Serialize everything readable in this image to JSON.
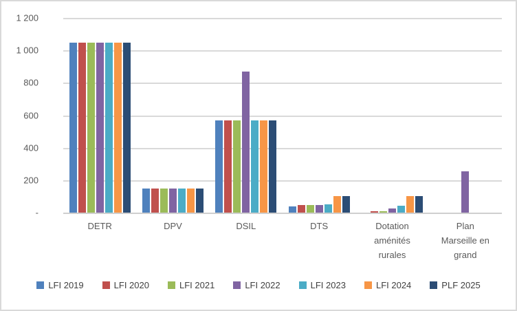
{
  "chart_data": {
    "type": "bar",
    "title": "",
    "categories": [
      "DETR",
      "DPV",
      "DSIL",
      "DTS",
      "Dotation aménités rurales",
      "Plan Marseille en grand"
    ],
    "series": [
      {
        "name": "LFI 2019",
        "color": "#4F81BD",
        "values": [
          1046,
          150,
          570,
          40,
          0,
          0
        ]
      },
      {
        "name": "LFI 2020",
        "color": "#C0504D",
        "values": [
          1046,
          150,
          570,
          46,
          8,
          0
        ]
      },
      {
        "name": "LFI 2021",
        "color": "#9BBB59",
        "values": [
          1046,
          150,
          570,
          46,
          10,
          0
        ]
      },
      {
        "name": "LFI 2022",
        "color": "#8064A2",
        "values": [
          1046,
          150,
          870,
          45,
          24,
          254
        ]
      },
      {
        "name": "LFI 2023",
        "color": "#4BACC6",
        "values": [
          1046,
          150,
          570,
          52,
          41,
          0
        ]
      },
      {
        "name": "LFI 2024",
        "color": "#F79646",
        "values": [
          1046,
          150,
          570,
          100,
          100,
          0
        ]
      },
      {
        "name": "PLF 2025",
        "color": "#2C4D75",
        "values": [
          1046,
          150,
          570,
          100,
          100,
          0
        ]
      }
    ],
    "ylim": [
      0,
      1200
    ],
    "yticks": [
      {
        "value": 0,
        "label": "-"
      },
      {
        "value": 200,
        "label": "200"
      },
      {
        "value": 400,
        "label": "400"
      },
      {
        "value": 600,
        "label": "600"
      },
      {
        "value": 800,
        "label": "800"
      },
      {
        "value": 1000,
        "label": "1 000"
      },
      {
        "value": 1200,
        "label": "1 200"
      }
    ],
    "grid": true,
    "legend_position": "bottom"
  },
  "colors": {
    "background": "#FFFFFF",
    "border": "#D9D9D9",
    "gridline": "#D9D9D9",
    "axis_text": "#595959",
    "legend_text": "#404040"
  }
}
